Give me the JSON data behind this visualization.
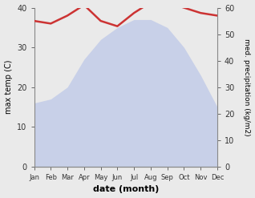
{
  "months": [
    "Jan",
    "Feb",
    "Mar",
    "Apr",
    "May",
    "Jun",
    "Jul",
    "Aug",
    "Sep",
    "Oct",
    "Nov",
    "Dec"
  ],
  "temp": [
    16,
    17,
    20,
    27,
    32,
    35,
    37,
    37,
    35,
    30,
    23,
    15
  ],
  "precip": [
    55,
    54,
    57,
    61,
    55,
    53,
    58,
    62,
    62,
    60,
    58,
    57
  ],
  "temp_fill_color": "#c8d0e8",
  "precip_color": "#cc3333",
  "temp_ylim": [
    0,
    40
  ],
  "precip_ylim": [
    0,
    60
  ],
  "precip_yticks": [
    0,
    10,
    20,
    30,
    40,
    50,
    60
  ],
  "temp_yticks": [
    0,
    10,
    20,
    30,
    40
  ],
  "xlabel": "date (month)",
  "ylabel_left": "max temp (C)",
  "ylabel_right": "med. precipitation (kg/m2)",
  "bg_color": "#eaeaea",
  "plot_bg_color": "#eaeaea"
}
